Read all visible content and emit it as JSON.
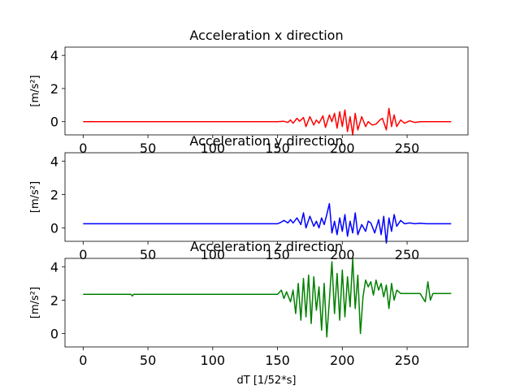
{
  "chart_data": [
    {
      "type": "line",
      "title": "Acceleration x direction",
      "ylabel": "[m/s²]",
      "xlabel": "",
      "color": "#ff0000",
      "xlim": [
        -14,
        297
      ],
      "ylim": [
        -0.8,
        4.5
      ],
      "xticks": [
        0,
        50,
        100,
        150,
        200,
        250
      ],
      "yticks": [
        0,
        2,
        4
      ],
      "x": [
        0,
        20,
        40,
        60,
        80,
        100,
        120,
        140,
        150,
        155,
        158,
        160,
        162,
        165,
        167,
        170,
        172,
        175,
        178,
        180,
        182,
        185,
        187,
        190,
        192,
        194,
        196,
        198,
        200,
        202,
        204,
        206,
        208,
        210,
        212,
        215,
        218,
        220,
        223,
        226,
        229,
        231,
        234,
        236,
        238,
        240,
        242,
        245,
        248,
        252,
        256,
        260,
        265,
        270,
        275,
        280,
        284
      ],
      "values": [
        0.0,
        0.0,
        0.0,
        0.0,
        0.0,
        0.0,
        0.0,
        0.0,
        0.0,
        0.02,
        -0.05,
        0.1,
        -0.1,
        0.2,
        0.02,
        0.25,
        -0.3,
        0.3,
        -0.2,
        0.1,
        -0.1,
        0.35,
        -0.35,
        0.4,
        0.0,
        0.5,
        -0.4,
        0.6,
        -0.3,
        0.7,
        -0.6,
        0.3,
        -0.8,
        0.5,
        -0.5,
        0.3,
        -0.3,
        0.0,
        -0.2,
        -0.15,
        0.1,
        0.2,
        -0.5,
        0.8,
        -0.3,
        0.4,
        -0.3,
        0.1,
        -0.1,
        0.05,
        -0.05,
        0.0,
        0.0,
        0.0,
        0.0,
        0.0,
        0.0
      ]
    },
    {
      "type": "line",
      "title": "Acceleration y direction",
      "ylabel": "[m/s²]",
      "xlabel": "",
      "color": "#0000ff",
      "xlim": [
        -14,
        297
      ],
      "ylim": [
        -0.8,
        4.5
      ],
      "xticks": [
        0,
        50,
        100,
        150,
        200,
        250
      ],
      "yticks": [
        0,
        2,
        4
      ],
      "x": [
        0,
        20,
        40,
        60,
        80,
        100,
        120,
        140,
        150,
        153,
        155,
        158,
        160,
        162,
        165,
        168,
        170,
        172,
        175,
        178,
        180,
        182,
        184,
        186,
        188,
        190,
        192,
        194,
        196,
        198,
        200,
        202,
        204,
        206,
        208,
        210,
        212,
        215,
        218,
        220,
        222,
        225,
        228,
        230,
        232,
        234,
        236,
        238,
        240,
        242,
        245,
        248,
        252,
        256,
        260,
        265,
        270,
        275,
        280,
        284
      ],
      "values": [
        0.25,
        0.25,
        0.25,
        0.25,
        0.25,
        0.25,
        0.25,
        0.25,
        0.25,
        0.35,
        0.45,
        0.3,
        0.5,
        0.3,
        0.6,
        0.2,
        0.9,
        0.0,
        0.7,
        0.1,
        0.4,
        0.0,
        0.6,
        0.2,
        0.8,
        1.45,
        -0.3,
        0.4,
        -0.4,
        0.6,
        -0.2,
        0.8,
        -0.5,
        0.4,
        -0.3,
        0.9,
        -0.4,
        0.2,
        -0.2,
        0.4,
        0.3,
        -0.3,
        0.5,
        -0.4,
        0.7,
        -0.9,
        0.6,
        -0.2,
        0.8,
        0.1,
        0.45,
        0.25,
        0.3,
        0.25,
        0.28,
        0.25,
        0.25,
        0.25,
        0.25,
        0.25
      ]
    },
    {
      "type": "line",
      "title": "Acceleration z direction",
      "ylabel": "[m/s²]",
      "xlabel": "dT [1/52*s]",
      "color": "#008000",
      "xlim": [
        -14,
        297
      ],
      "ylim": [
        -0.8,
        4.5
      ],
      "xticks": [
        0,
        50,
        100,
        150,
        200,
        250
      ],
      "yticks": [
        0,
        2,
        4
      ],
      "x": [
        0,
        20,
        37,
        38,
        39,
        60,
        80,
        100,
        120,
        140,
        150,
        153,
        155,
        157,
        160,
        162,
        164,
        166,
        168,
        170,
        172,
        174,
        176,
        178,
        180,
        182,
        184,
        186,
        188,
        190,
        192,
        194,
        196,
        198,
        200,
        202,
        204,
        206,
        208,
        210,
        212,
        214,
        216,
        218,
        220,
        222,
        224,
        226,
        228,
        230,
        232,
        234,
        236,
        238,
        240,
        242,
        245,
        248,
        252,
        256,
        260,
        264,
        266,
        268,
        270,
        275,
        280,
        284
      ],
      "values": [
        2.35,
        2.35,
        2.35,
        2.25,
        2.35,
        2.35,
        2.35,
        2.35,
        2.35,
        2.35,
        2.35,
        2.6,
        2.1,
        2.5,
        1.9,
        2.6,
        1.2,
        3.0,
        0.8,
        3.3,
        1.0,
        3.5,
        0.6,
        3.4,
        1.4,
        2.8,
        0.2,
        3.0,
        -0.2,
        2.0,
        4.3,
        1.2,
        3.6,
        0.8,
        3.8,
        1.0,
        3.4,
        1.6,
        4.5,
        1.5,
        3.5,
        0.0,
        2.2,
        3.2,
        2.8,
        3.1,
        2.3,
        3.2,
        2.6,
        3.0,
        2.2,
        2.9,
        1.5,
        3.0,
        2.0,
        2.6,
        2.4,
        2.4,
        2.4,
        2.4,
        2.4,
        1.9,
        3.1,
        2.0,
        2.4,
        2.4,
        2.4,
        2.4
      ]
    }
  ]
}
